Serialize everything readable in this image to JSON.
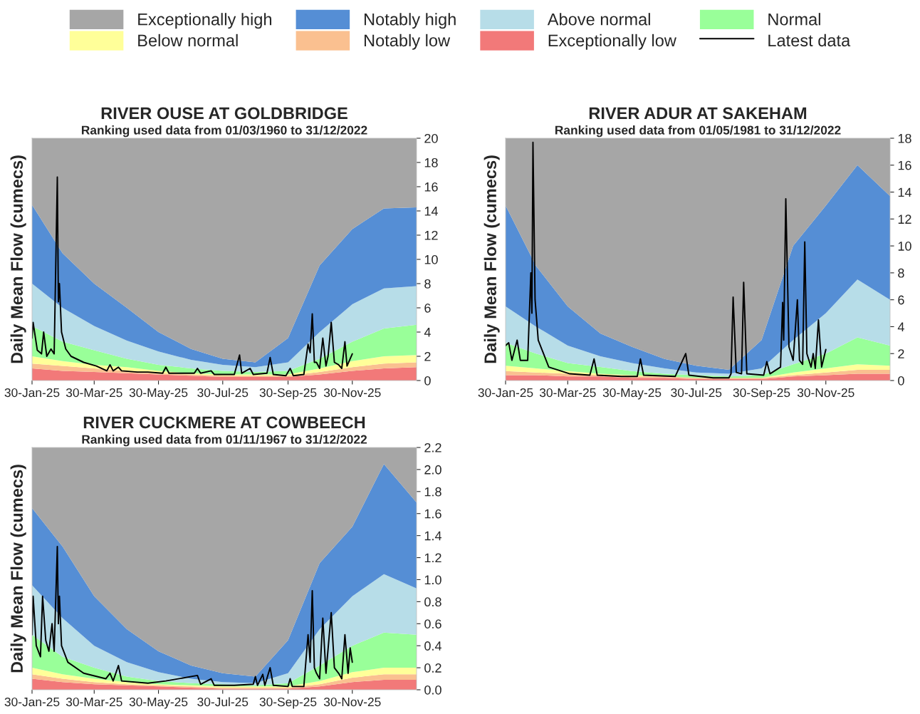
{
  "chart_data": [
    {
      "type": "area",
      "stacked": true,
      "legend": "top",
      "title": "RIVER OUSE AT GOLDBRIDGE",
      "subtitle": "Ranking used data from 01/03/1960 to 31/12/2022",
      "ylabel": "Daily Mean Flow (cumecs)",
      "x": [
        "2025-01-30",
        "2025-02-28",
        "2025-03-30",
        "2025-04-30",
        "2025-05-30",
        "2025-06-30",
        "2025-07-30",
        "2025-08-30",
        "2025-09-30",
        "2025-10-30",
        "2025-11-30",
        "2025-12-30",
        "2026-01-30"
      ],
      "xlim": [
        "2025-01-30",
        "2026-01-30"
      ],
      "xticks": [
        {
          "value": "2025-01-30",
          "label": "30-Jan-25"
        },
        {
          "value": "2025-03-30",
          "label": "30-Mar-25"
        },
        {
          "value": "2025-05-30",
          "label": "30-May-25"
        },
        {
          "value": "2025-07-30",
          "label": "30-Jul-25"
        },
        {
          "value": "2025-09-30",
          "label": "30-Sep-25"
        },
        {
          "value": "2025-11-30",
          "label": "30-Nov-25"
        }
      ],
      "ylim": [
        0,
        20
      ],
      "yticks": [
        0,
        2,
        4,
        6,
        8,
        10,
        12,
        14,
        16,
        18,
        20
      ],
      "series": [
        {
          "name": "Exceptionally low",
          "color": "#f27979",
          "values": [
            1.0,
            0.8,
            0.7,
            0.6,
            0.5,
            0.4,
            0.3,
            0.3,
            0.3,
            0.5,
            0.8,
            1.0,
            1.1
          ]
        },
        {
          "name": "Notably low",
          "color": "#fac090",
          "values": [
            0.4,
            0.4,
            0.3,
            0.2,
            0.1,
            0.1,
            0.1,
            0.1,
            0.1,
            0.2,
            0.3,
            0.4,
            0.4
          ]
        },
        {
          "name": "Below normal",
          "color": "#ffff99",
          "values": [
            0.6,
            0.4,
            0.3,
            0.3,
            0.2,
            0.1,
            0.1,
            0.1,
            0.1,
            0.3,
            0.5,
            0.6,
            0.6
          ]
        },
        {
          "name": "Normal",
          "color": "#99ff99",
          "values": [
            2.5,
            1.6,
            1.2,
            0.7,
            0.5,
            0.4,
            0.3,
            0.2,
            0.3,
            0.8,
            1.6,
            2.3,
            2.5
          ]
        },
        {
          "name": "Above normal",
          "color": "#b7dde8",
          "values": [
            3.5,
            2.8,
            2.0,
            1.5,
            1.1,
            0.7,
            0.5,
            0.4,
            0.7,
            2.2,
            3.1,
            3.3,
            3.2
          ]
        },
        {
          "name": "Notably high",
          "color": "#558ed5",
          "values": [
            6.5,
            4.5,
            3.5,
            2.7,
            1.6,
            0.9,
            0.5,
            0.4,
            2.0,
            5.5,
            6.2,
            6.6,
            6.5
          ]
        },
        {
          "name": "Exceptionally high",
          "color": "#a6a6a6",
          "values": [
            5.5,
            9.5,
            12.0,
            14.0,
            16.0,
            17.4,
            18.2,
            18.5,
            16.5,
            10.5,
            7.5,
            5.8,
            5.7
          ]
        },
        {
          "name": "Latest data",
          "type": "line",
          "color": "#000000",
          "x": [
            "2025-01-30",
            "2025-01-31",
            "2025-02-04",
            "2025-02-08",
            "2025-02-10",
            "2025-02-13",
            "2025-02-17",
            "2025-02-20",
            "2025-02-23",
            "2025-02-24",
            "2025-02-25",
            "2025-02-27",
            "2025-03-03",
            "2025-03-08",
            "2025-03-20",
            "2025-04-01",
            "2025-04-11",
            "2025-04-14",
            "2025-04-17",
            "2025-04-22",
            "2025-04-25",
            "2025-05-10",
            "2025-05-20",
            "2025-06-03",
            "2025-06-06",
            "2025-06-09",
            "2025-07-03",
            "2025-07-06",
            "2025-07-09",
            "2025-07-19",
            "2025-07-22",
            "2025-08-10",
            "2025-08-15",
            "2025-08-17",
            "2025-08-25",
            "2025-08-28",
            "2025-09-10",
            "2025-09-13",
            "2025-09-16",
            "2025-09-28",
            "2025-10-02",
            "2025-10-05",
            "2025-10-15",
            "2025-10-19",
            "2025-10-21",
            "2025-10-23",
            "2025-10-25",
            "2025-10-27",
            "2025-10-30",
            "2025-11-02",
            "2025-11-05",
            "2025-11-07",
            "2025-11-10",
            "2025-11-13",
            "2025-11-17",
            "2025-11-20",
            "2025-11-23",
            "2025-11-25",
            "2025-11-28",
            "2025-11-30"
          ],
          "values": [
            3.5,
            4.8,
            2.5,
            2.2,
            4.0,
            2.0,
            2.6,
            2.2,
            16.8,
            6.5,
            8.0,
            4.0,
            2.6,
            2.0,
            1.5,
            1.2,
            0.8,
            1.3,
            0.8,
            1.1,
            0.8,
            0.7,
            0.7,
            0.6,
            1.1,
            0.6,
            0.6,
            1.0,
            0.6,
            0.8,
            0.5,
            0.5,
            2.1,
            0.6,
            1.0,
            0.5,
            0.6,
            1.9,
            0.5,
            0.4,
            1.0,
            0.4,
            0.5,
            3.0,
            2.3,
            5.5,
            1.5,
            1.5,
            1.0,
            3.5,
            1.2,
            2.0,
            4.8,
            1.5,
            1.3,
            1.0,
            3.2,
            1.2,
            1.8,
            2.2
          ]
        }
      ]
    },
    {
      "type": "area",
      "stacked": true,
      "title": "RIVER ADUR AT SAKEHAM",
      "subtitle": "Ranking used data from 01/05/1981 to 31/12/2022",
      "ylabel": "Daily Mean Flow (cumecs)",
      "x": [
        "2025-01-30",
        "2025-02-28",
        "2025-03-30",
        "2025-04-30",
        "2025-05-30",
        "2025-06-30",
        "2025-07-30",
        "2025-08-30",
        "2025-09-30",
        "2025-10-30",
        "2025-11-30",
        "2025-12-30",
        "2026-01-30"
      ],
      "xlim": [
        "2025-01-30",
        "2026-01-30"
      ],
      "xticks": [
        {
          "value": "2025-01-30",
          "label": "30-Jan-25"
        },
        {
          "value": "2025-03-30",
          "label": "30-Mar-25"
        },
        {
          "value": "2025-05-30",
          "label": "30-May-25"
        },
        {
          "value": "2025-07-30",
          "label": "30-Jul-25"
        },
        {
          "value": "2025-09-30",
          "label": "30-Sep-25"
        },
        {
          "value": "2025-11-30",
          "label": "30-Nov-25"
        }
      ],
      "ylim": [
        0,
        18
      ],
      "yticks": [
        0,
        2,
        4,
        6,
        8,
        10,
        12,
        14,
        16,
        18
      ],
      "series": [
        {
          "color": "#f27979",
          "values": [
            0.4,
            0.4,
            0.3,
            0.3,
            0.2,
            0.2,
            0.1,
            0.1,
            0.1,
            0.3,
            0.4,
            0.5,
            0.5
          ]
        },
        {
          "color": "#fac090",
          "values": [
            0.3,
            0.2,
            0.2,
            0.1,
            0.1,
            0.1,
            0.1,
            0.1,
            0.1,
            0.1,
            0.2,
            0.3,
            0.3
          ]
        },
        {
          "color": "#ffff99",
          "values": [
            0.4,
            0.3,
            0.2,
            0.1,
            0.1,
            0.0,
            0.0,
            0.0,
            0.0,
            0.2,
            0.3,
            0.4,
            0.3
          ]
        },
        {
          "color": "#99ff99",
          "values": [
            1.7,
            1.1,
            0.6,
            0.5,
            0.3,
            0.2,
            0.2,
            0.1,
            0.2,
            0.6,
            1.1,
            2.0,
            1.5
          ]
        },
        {
          "color": "#b7dde8",
          "values": [
            2.7,
            2.0,
            1.3,
            0.8,
            0.6,
            0.4,
            0.2,
            0.2,
            0.5,
            1.8,
            3.0,
            4.3,
            3.4
          ]
        },
        {
          "color": "#558ed5",
          "values": [
            7.5,
            4.5,
            2.9,
            1.7,
            1.2,
            0.7,
            0.5,
            0.3,
            2.1,
            7.0,
            8.0,
            8.5,
            7.7
          ]
        },
        {
          "color": "#a6a6a6",
          "values": [
            5.0,
            9.5,
            12.5,
            14.5,
            15.5,
            16.4,
            16.9,
            17.2,
            15.0,
            8.0,
            5.0,
            2.0,
            4.3
          ]
        },
        {
          "type": "line",
          "color": "#000000",
          "x": [
            "2025-01-30",
            "2025-02-02",
            "2025-02-05",
            "2025-02-10",
            "2025-02-13",
            "2025-02-20",
            "2025-02-23",
            "2025-02-24",
            "2025-02-25",
            "2025-02-27",
            "2025-03-02",
            "2025-03-12",
            "2025-04-01",
            "2025-04-20",
            "2025-04-24",
            "2025-04-27",
            "2025-05-20",
            "2025-06-04",
            "2025-06-07",
            "2025-06-10",
            "2025-07-10",
            "2025-07-20",
            "2025-07-23",
            "2025-08-15",
            "2025-08-30",
            "2025-09-01",
            "2025-09-03",
            "2025-09-06",
            "2025-09-11",
            "2025-09-13",
            "2025-09-16",
            "2025-10-02",
            "2025-10-05",
            "2025-10-08",
            "2025-10-18",
            "2025-10-20",
            "2025-10-21",
            "2025-10-23",
            "2025-10-26",
            "2025-10-30",
            "2025-11-03",
            "2025-11-05",
            "2025-11-08",
            "2025-11-10",
            "2025-11-12",
            "2025-11-16",
            "2025-11-18",
            "2025-11-20",
            "2025-11-23",
            "2025-11-26",
            "2025-11-30"
          ],
          "values": [
            2.6,
            2.8,
            1.5,
            3.0,
            1.5,
            1.5,
            8.0,
            5.0,
            17.7,
            6.0,
            3.0,
            1.0,
            0.5,
            0.4,
            1.6,
            0.4,
            0.3,
            0.3,
            1.6,
            0.4,
            0.3,
            2.0,
            0.4,
            0.2,
            0.2,
            0.5,
            6.2,
            0.6,
            0.5,
            7.3,
            0.5,
            0.4,
            1.4,
            0.5,
            1.0,
            5.8,
            3.0,
            13.5,
            2.5,
            1.5,
            6.0,
            1.5,
            1.2,
            10.3,
            2.0,
            1.0,
            2.0,
            0.9,
            4.5,
            1.0,
            2.3
          ]
        }
      ]
    },
    {
      "type": "area",
      "stacked": true,
      "title": "RIVER CUCKMERE AT COWBEECH",
      "subtitle": "Ranking used data from 01/11/1967 to 31/12/2022",
      "ylabel": "Daily Mean Flow (cumecs)",
      "x": [
        "2025-01-30",
        "2025-02-28",
        "2025-03-30",
        "2025-04-30",
        "2025-05-30",
        "2025-06-30",
        "2025-07-30",
        "2025-08-30",
        "2025-09-30",
        "2025-10-30",
        "2025-11-30",
        "2025-12-30",
        "2026-01-30"
      ],
      "xlim": [
        "2025-01-30",
        "2026-01-30"
      ],
      "xticks": [
        {
          "value": "2025-01-30",
          "label": "30-Jan-25"
        },
        {
          "value": "2025-03-30",
          "label": "30-Mar-25"
        },
        {
          "value": "2025-05-30",
          "label": "30-May-25"
        },
        {
          "value": "2025-07-30",
          "label": "30-Jul-25"
        },
        {
          "value": "2025-09-30",
          "label": "30-Sep-25"
        },
        {
          "value": "2025-11-30",
          "label": "30-Nov-25"
        }
      ],
      "ylim": [
        0,
        2.2
      ],
      "yticks": [
        {
          "value": 0,
          "label": "0.0"
        },
        {
          "value": 0.2,
          "label": "0.2"
        },
        {
          "value": 0.4,
          "label": "0.4"
        },
        {
          "value": 0.6,
          "label": "0.6"
        },
        {
          "value": 0.8,
          "label": "0.8"
        },
        {
          "value": 1.0,
          "label": "1.0"
        },
        {
          "value": 1.2,
          "label": "1.2"
        },
        {
          "value": 1.4,
          "label": "1.4"
        },
        {
          "value": 1.6,
          "label": "1.6"
        },
        {
          "value": 1.8,
          "label": "1.8"
        },
        {
          "value": 2.0,
          "label": "2.0"
        },
        {
          "value": 2.2,
          "label": "2.2"
        }
      ],
      "series": [
        {
          "color": "#f27979",
          "values": [
            0.1,
            0.07,
            0.05,
            0.04,
            0.03,
            0.02,
            0.01,
            0.01,
            0.01,
            0.03,
            0.07,
            0.09,
            0.09
          ]
        },
        {
          "color": "#fac090",
          "values": [
            0.04,
            0.03,
            0.02,
            0.01,
            0.01,
            0.01,
            0.01,
            0.01,
            0.01,
            0.02,
            0.04,
            0.05,
            0.05
          ]
        },
        {
          "color": "#ffff99",
          "values": [
            0.06,
            0.04,
            0.03,
            0.02,
            0.01,
            0.01,
            0.01,
            0.01,
            0.01,
            0.03,
            0.05,
            0.06,
            0.06
          ]
        },
        {
          "color": "#99ff99",
          "values": [
            0.3,
            0.16,
            0.1,
            0.05,
            0.03,
            0.02,
            0.02,
            0.01,
            0.03,
            0.14,
            0.24,
            0.32,
            0.3
          ]
        },
        {
          "color": "#b7dde8",
          "values": [
            0.45,
            0.35,
            0.2,
            0.13,
            0.08,
            0.04,
            0.02,
            0.02,
            0.09,
            0.33,
            0.45,
            0.53,
            0.42
          ]
        },
        {
          "color": "#558ed5",
          "values": [
            0.7,
            0.65,
            0.45,
            0.3,
            0.19,
            0.12,
            0.08,
            0.06,
            0.3,
            0.6,
            0.63,
            1.0,
            0.78
          ]
        },
        {
          "color": "#a6a6a6",
          "values": [
            0.55,
            0.9,
            1.35,
            1.65,
            1.85,
            1.98,
            2.05,
            2.08,
            1.75,
            1.05,
            0.72,
            0.15,
            0.5
          ]
        },
        {
          "type": "line",
          "color": "#000000",
          "x": [
            "2025-01-30",
            "2025-01-31",
            "2025-02-03",
            "2025-02-07",
            "2025-02-09",
            "2025-02-12",
            "2025-02-15",
            "2025-02-18",
            "2025-02-20",
            "2025-02-23",
            "2025-02-24",
            "2025-02-25",
            "2025-02-27",
            "2025-03-05",
            "2025-03-20",
            "2025-04-10",
            "2025-04-14",
            "2025-04-17",
            "2025-04-22",
            "2025-04-25",
            "2025-05-20",
            "2025-06-06",
            "2025-07-06",
            "2025-07-09",
            "2025-07-19",
            "2025-07-22",
            "2025-08-10",
            "2025-08-28",
            "2025-08-30",
            "2025-09-01",
            "2025-09-06",
            "2025-09-08",
            "2025-09-13",
            "2025-09-16",
            "2025-09-30",
            "2025-10-02",
            "2025-10-04",
            "2025-10-15",
            "2025-10-19",
            "2025-10-21",
            "2025-10-23",
            "2025-10-25",
            "2025-10-27",
            "2025-10-30",
            "2025-11-02",
            "2025-11-05",
            "2025-11-10",
            "2025-11-13",
            "2025-11-17",
            "2025-11-20",
            "2025-11-23",
            "2025-11-26",
            "2025-11-28",
            "2025-11-30"
          ],
          "values": [
            0.5,
            0.85,
            0.4,
            0.3,
            0.85,
            0.45,
            0.35,
            0.6,
            0.35,
            1.3,
            0.6,
            0.85,
            0.4,
            0.25,
            0.15,
            0.1,
            0.15,
            0.08,
            0.22,
            0.08,
            0.06,
            0.08,
            0.13,
            0.05,
            0.1,
            0.04,
            0.04,
            0.05,
            0.12,
            0.04,
            0.14,
            0.04,
            0.2,
            0.04,
            0.03,
            0.1,
            0.03,
            0.03,
            0.5,
            0.25,
            0.9,
            0.2,
            0.15,
            0.1,
            0.65,
            0.15,
            0.7,
            0.2,
            0.15,
            0.1,
            0.5,
            0.15,
            0.38,
            0.25
          ]
        }
      ]
    }
  ]
}
